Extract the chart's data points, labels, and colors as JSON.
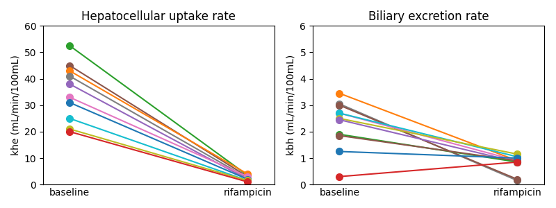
{
  "title1": "Hepatocellular uptake rate",
  "title2": "Biliary excretion rate",
  "ylabel1": "khe (mL/min/100mL)",
  "ylabel2": "kbh (mL/min/100mL)",
  "xtick_labels": [
    "baseline",
    "rifampicin"
  ],
  "ylim1": [
    0,
    60
  ],
  "ylim2": [
    0,
    6
  ],
  "khe_data": [
    {
      "color": "#2ca02c",
      "baseline": 52.5,
      "rifampicin": 3.5
    },
    {
      "color": "#8c564b",
      "baseline": 45.0,
      "rifampicin": 3.0
    },
    {
      "color": "#ff7f0e",
      "baseline": 43.0,
      "rifampicin": 4.0
    },
    {
      "color": "#7f7f7f",
      "baseline": 41.0,
      "rifampicin": 2.5
    },
    {
      "color": "#9467bd",
      "baseline": 38.0,
      "rifampicin": 2.0
    },
    {
      "color": "#e377c2",
      "baseline": 33.0,
      "rifampicin": 3.0
    },
    {
      "color": "#1f77b4",
      "baseline": 31.0,
      "rifampicin": 2.0
    },
    {
      "color": "#17becf",
      "baseline": 25.0,
      "rifampicin": 1.5
    },
    {
      "color": "#bcbd22",
      "baseline": 21.0,
      "rifampicin": 1.5
    },
    {
      "color": "#d62728",
      "baseline": 20.0,
      "rifampicin": 1.0
    }
  ],
  "kbh_data": [
    {
      "color": "#ff7f0e",
      "baseline": 3.45,
      "rifampicin": 0.9
    },
    {
      "color": "#7f7f7f",
      "baseline": 3.05,
      "rifampicin": 0.15
    },
    {
      "color": "#8c564b",
      "baseline": 3.0,
      "rifampicin": 0.2
    },
    {
      "color": "#e377c2",
      "baseline": 2.7,
      "rifampicin": 0.9
    },
    {
      "color": "#17becf",
      "baseline": 2.7,
      "rifampicin": 1.05
    },
    {
      "color": "#bcbd22",
      "baseline": 2.5,
      "rifampicin": 1.15
    },
    {
      "color": "#9467bd",
      "baseline": 2.45,
      "rifampicin": 0.85
    },
    {
      "color": "#2ca02c",
      "baseline": 1.9,
      "rifampicin": 0.85
    },
    {
      "color": "#8c564b",
      "baseline": 1.85,
      "rifampicin": 0.9
    },
    {
      "color": "#1f77b4",
      "baseline": 1.25,
      "rifampicin": 1.0
    },
    {
      "color": "#d62728",
      "baseline": 0.3,
      "rifampicin": 0.85
    }
  ],
  "markersize": 7,
  "linewidth": 1.5,
  "x_positions": [
    0,
    1
  ],
  "xlim": [
    -0.15,
    1.15
  ]
}
